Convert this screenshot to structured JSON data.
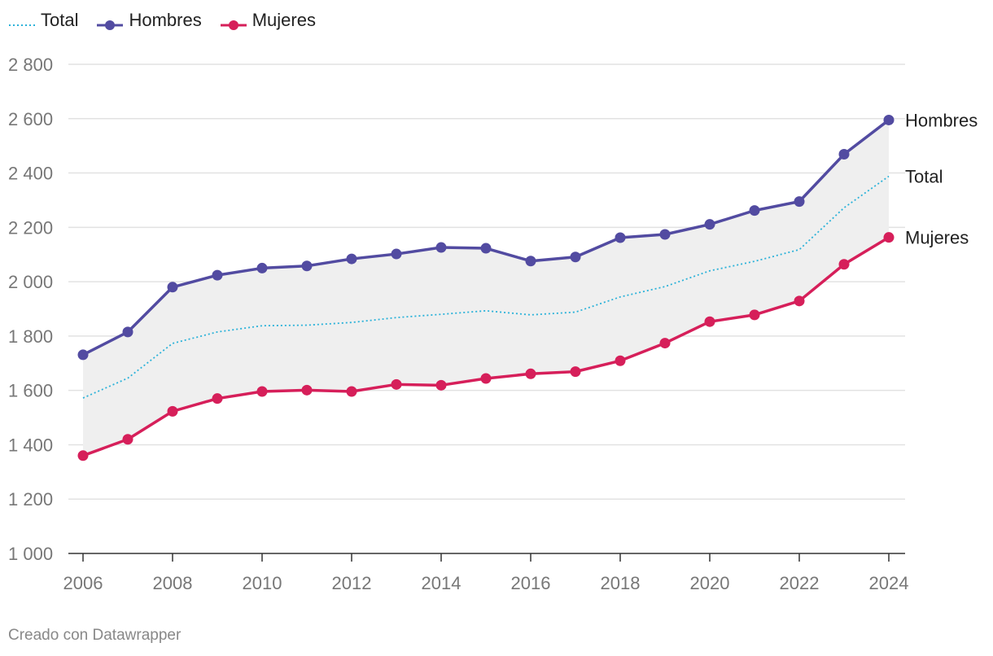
{
  "chart_data": {
    "type": "line",
    "title": "",
    "xlabel": "",
    "ylabel": "",
    "x": [
      2006,
      2007,
      2008,
      2009,
      2010,
      2011,
      2012,
      2013,
      2014,
      2015,
      2016,
      2017,
      2018,
      2019,
      2020,
      2021,
      2022,
      2023,
      2024
    ],
    "x_ticks": [
      "2006",
      "2008",
      "2010",
      "2012",
      "2014",
      "2016",
      "2018",
      "2020",
      "2022",
      "2024"
    ],
    "y_ticks": [
      "1 000",
      "1 200",
      "1 400",
      "1 600",
      "1 800",
      "2 000",
      "2 200",
      "2 400",
      "2 600",
      "2 800"
    ],
    "ylim": [
      1000,
      2800
    ],
    "grid": true,
    "legend_position": "top-left",
    "series": [
      {
        "name": "Total",
        "color": "#2bb2d9",
        "style": "dotted",
        "values": [
          1572,
          1645,
          1773,
          1815,
          1838,
          1840,
          1850,
          1868,
          1880,
          1893,
          1878,
          1888,
          1944,
          1982,
          2040,
          2075,
          2118,
          2272,
          2388
        ]
      },
      {
        "name": "Hombres",
        "color": "#524ba1",
        "style": "solid-markers",
        "values": [
          1731,
          1815,
          1980,
          2024,
          2050,
          2058,
          2084,
          2102,
          2126,
          2123,
          2076,
          2091,
          2162,
          2174,
          2211,
          2262,
          2295,
          2469,
          2595
        ]
      },
      {
        "name": "Mujeres",
        "color": "#d61f5a",
        "style": "solid-markers",
        "values": [
          1360,
          1420,
          1523,
          1570,
          1596,
          1601,
          1596,
          1622,
          1619,
          1644,
          1661,
          1669,
          1709,
          1774,
          1853,
          1878,
          1929,
          2064,
          2163
        ]
      }
    ],
    "end_labels": {
      "Hombres": "Hombres",
      "Total": "Total",
      "Mujeres": "Mujeres"
    }
  },
  "legend": [
    {
      "label": "Total",
      "color": "#2bb2d9",
      "style": "dotted"
    },
    {
      "label": "Hombres",
      "color": "#524ba1",
      "style": "marker"
    },
    {
      "label": "Mujeres",
      "color": "#d61f5a",
      "style": "marker"
    }
  ],
  "credit": "Creado con Datawrapper",
  "colors": {
    "band": "#efefef",
    "grid": "#e2e2e2",
    "axis": "#333333",
    "tick_label": "#777777"
  }
}
